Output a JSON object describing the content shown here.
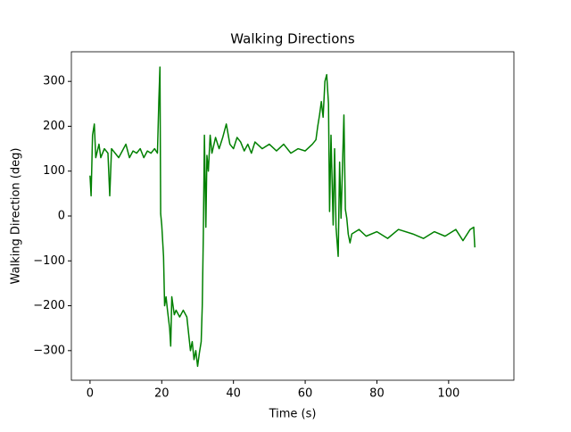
{
  "chart_data": {
    "type": "line",
    "title": "Walking Directions",
    "xlabel": "Time (s)",
    "ylabel": "Walking Direction (deg)",
    "x": [
      0,
      0.3,
      0.7,
      1.2,
      1.6,
      2.5,
      3,
      4,
      5,
      5.5,
      6,
      7,
      8,
      9,
      10,
      11,
      12,
      13,
      14,
      15,
      16,
      17,
      18,
      18.8,
      19.2,
      19.5,
      19.7,
      20,
      20.5,
      20.8,
      21.2,
      21.6,
      22.2,
      22.5,
      22.8,
      23.5,
      24,
      25,
      26,
      27,
      28,
      28.5,
      29,
      29.5,
      30,
      30.5,
      31,
      31.3,
      31.6,
      31.9,
      32.3,
      32.6,
      33,
      33.5,
      34,
      35,
      36,
      37,
      38,
      39,
      40,
      41,
      42,
      43,
      44,
      45,
      46,
      48,
      50,
      52,
      54,
      56,
      58,
      60,
      62,
      63,
      63.5,
      64,
      64.5,
      65,
      65.5,
      66,
      66.5,
      66.8,
      67.2,
      67.8,
      68.2,
      68.6,
      69.2,
      69.6,
      70,
      70.4,
      70.8,
      71.2,
      71.6,
      72,
      72.5,
      73,
      75,
      77,
      80,
      83,
      86,
      90,
      93,
      96,
      99,
      102,
      104,
      106,
      107,
      107.3
    ],
    "series": [
      {
        "name": "Walking Direction",
        "color": "#008000",
        "values": [
          90,
          45,
          180,
          205,
          130,
          160,
          130,
          150,
          140,
          45,
          150,
          140,
          130,
          145,
          160,
          130,
          145,
          140,
          150,
          130,
          145,
          140,
          150,
          140,
          260,
          332,
          5,
          -20,
          -90,
          -200,
          -180,
          -210,
          -250,
          -290,
          -180,
          -220,
          -210,
          -225,
          -210,
          -225,
          -300,
          -280,
          -320,
          -300,
          -335,
          -305,
          -280,
          -200,
          -40,
          180,
          -25,
          135,
          100,
          180,
          140,
          175,
          150,
          175,
          205,
          160,
          150,
          175,
          165,
          145,
          160,
          140,
          165,
          150,
          160,
          145,
          160,
          140,
          150,
          145,
          160,
          170,
          200,
          225,
          255,
          220,
          300,
          315,
          250,
          10,
          180,
          -20,
          150,
          -25,
          -90,
          120,
          -5,
          110,
          225,
          15,
          -5,
          -40,
          -60,
          -40,
          -30,
          -45,
          -35,
          -50,
          -30,
          -40,
          -50,
          -35,
          -45,
          -30,
          -55,
          -30,
          -25,
          -70
        ]
      }
    ],
    "xlim": [
      -5.2,
      118.2
    ],
    "ylim": [
      -366,
      366
    ],
    "xticks": [
      0,
      20,
      40,
      60,
      80,
      100
    ],
    "yticks": [
      {
        "value": -300,
        "label": "−300"
      },
      {
        "value": -200,
        "label": "−200"
      },
      {
        "value": -100,
        "label": "−100"
      },
      0,
      100,
      200,
      300
    ]
  }
}
